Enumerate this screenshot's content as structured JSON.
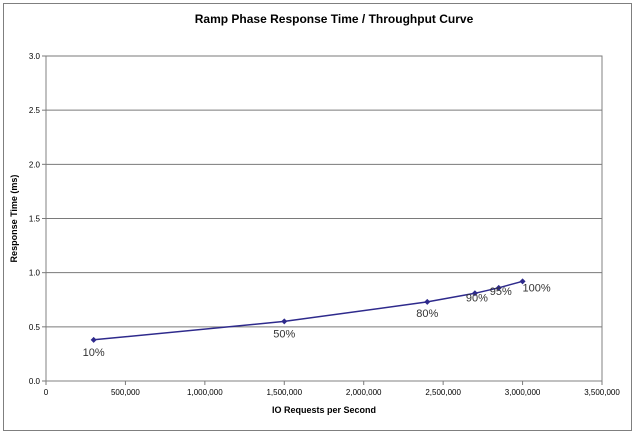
{
  "chart_data": {
    "type": "line",
    "title": "Ramp Phase Response Time / Throughput Curve",
    "xlabel": "IO Requests  per Second",
    "ylabel": "Response Time (ms)",
    "xlim": [
      0,
      3500000
    ],
    "ylim": [
      0,
      3.0
    ],
    "x_ticks": [
      0,
      500000,
      1000000,
      1500000,
      2000000,
      2500000,
      3000000,
      3500000
    ],
    "x_tick_labels": [
      "0",
      "500,000",
      "1,000,000",
      "1,500,000",
      "2,000,000",
      "2,500,000",
      "3,000,000",
      "3,500,000"
    ],
    "y_ticks": [
      0,
      0.5,
      1.0,
      1.5,
      2.0,
      2.5,
      3.0
    ],
    "y_tick_labels": [
      "0.0",
      "0.5",
      "1.0",
      "1.5",
      "2.0",
      "2.5",
      "3.0"
    ],
    "grid": "horizontal",
    "legend": "none",
    "series": [
      {
        "color": "#2e2a8c",
        "points": [
          {
            "x": 300000,
            "y": 0.38,
            "label": "10%"
          },
          {
            "x": 1500000,
            "y": 0.55,
            "label": "50%"
          },
          {
            "x": 2400000,
            "y": 0.73,
            "label": "80%"
          },
          {
            "x": 2700000,
            "y": 0.81,
            "label": "90%"
          },
          {
            "x": 2850000,
            "y": 0.86,
            "label": "95%"
          },
          {
            "x": 3000000,
            "y": 0.92,
            "label": "100%"
          }
        ]
      }
    ]
  }
}
